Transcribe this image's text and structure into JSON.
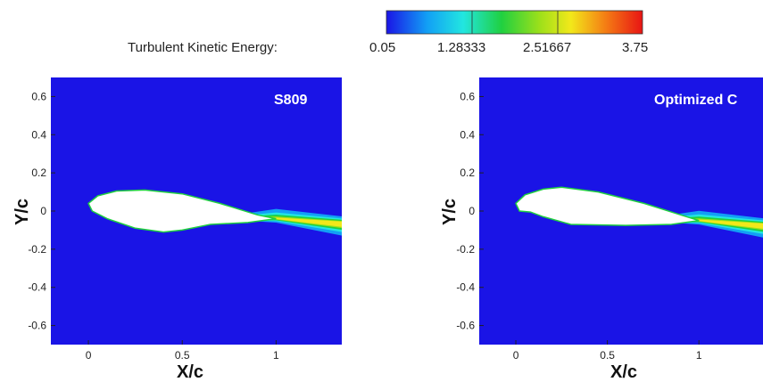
{
  "colorbar": {
    "label": "Turbulent Kinetic Energy:",
    "ticks": [
      "0.05",
      "1.28333",
      "2.51667",
      "3.75"
    ],
    "colors": [
      "#1a14e6",
      "#12a0f5",
      "#22e6e0",
      "#20d040",
      "#9ee01a",
      "#f2e81a",
      "#f47a14",
      "#e81414"
    ]
  },
  "chart_data": [
    {
      "type": "heatmap",
      "title": "S809",
      "xlabel": "X/c",
      "ylabel": "Y/c",
      "xlim": [
        -0.2,
        1.35
      ],
      "ylim": [
        -0.7,
        0.7
      ],
      "x_ticks": [
        "0",
        "0.5",
        "1"
      ],
      "y_ticks": [
        "0.6",
        "0.4",
        "0.2",
        "0",
        "-0.2",
        "-0.4",
        "-0.6"
      ],
      "field": "Turbulent Kinetic Energy",
      "color_range": [
        0.05,
        3.75
      ],
      "background_color": "#1a14e6",
      "airfoil_upper": [
        [
          0,
          0.04
        ],
        [
          0.05,
          0.08
        ],
        [
          0.15,
          0.105
        ],
        [
          0.3,
          0.11
        ],
        [
          0.5,
          0.09
        ],
        [
          0.7,
          0.04
        ],
        [
          0.9,
          -0.02
        ],
        [
          1.0,
          -0.04
        ]
      ],
      "airfoil_lower": [
        [
          1.0,
          -0.04
        ],
        [
          0.85,
          -0.06
        ],
        [
          0.65,
          -0.07
        ],
        [
          0.5,
          -0.1
        ],
        [
          0.4,
          -0.11
        ],
        [
          0.25,
          -0.09
        ],
        [
          0.1,
          -0.04
        ],
        [
          0.02,
          0.0
        ],
        [
          0,
          0.04
        ]
      ]
    },
    {
      "type": "heatmap",
      "title": "Optimized C",
      "xlabel": "X/c",
      "ylabel": "Y/c",
      "xlim": [
        -0.2,
        1.35
      ],
      "ylim": [
        -0.7,
        0.7
      ],
      "x_ticks": [
        "0",
        "0.5",
        "1"
      ],
      "y_ticks": [
        "0.6",
        "0.4",
        "0.2",
        "0",
        "-0.2",
        "-0.4",
        "-0.6"
      ],
      "field": "Turbulent Kinetic Energy",
      "color_range": [
        0.05,
        3.75
      ],
      "background_color": "#1a14e6",
      "airfoil_upper": [
        [
          0,
          0.04
        ],
        [
          0.05,
          0.085
        ],
        [
          0.15,
          0.115
        ],
        [
          0.25,
          0.125
        ],
        [
          0.45,
          0.1
        ],
        [
          0.7,
          0.04
        ],
        [
          0.9,
          -0.02
        ],
        [
          1.0,
          -0.05
        ]
      ],
      "airfoil_lower": [
        [
          1.0,
          -0.05
        ],
        [
          0.85,
          -0.07
        ],
        [
          0.6,
          -0.075
        ],
        [
          0.3,
          -0.07
        ],
        [
          0.15,
          -0.03
        ],
        [
          0.08,
          -0.005
        ],
        [
          0.02,
          0.0
        ],
        [
          0,
          0.04
        ]
      ]
    }
  ]
}
